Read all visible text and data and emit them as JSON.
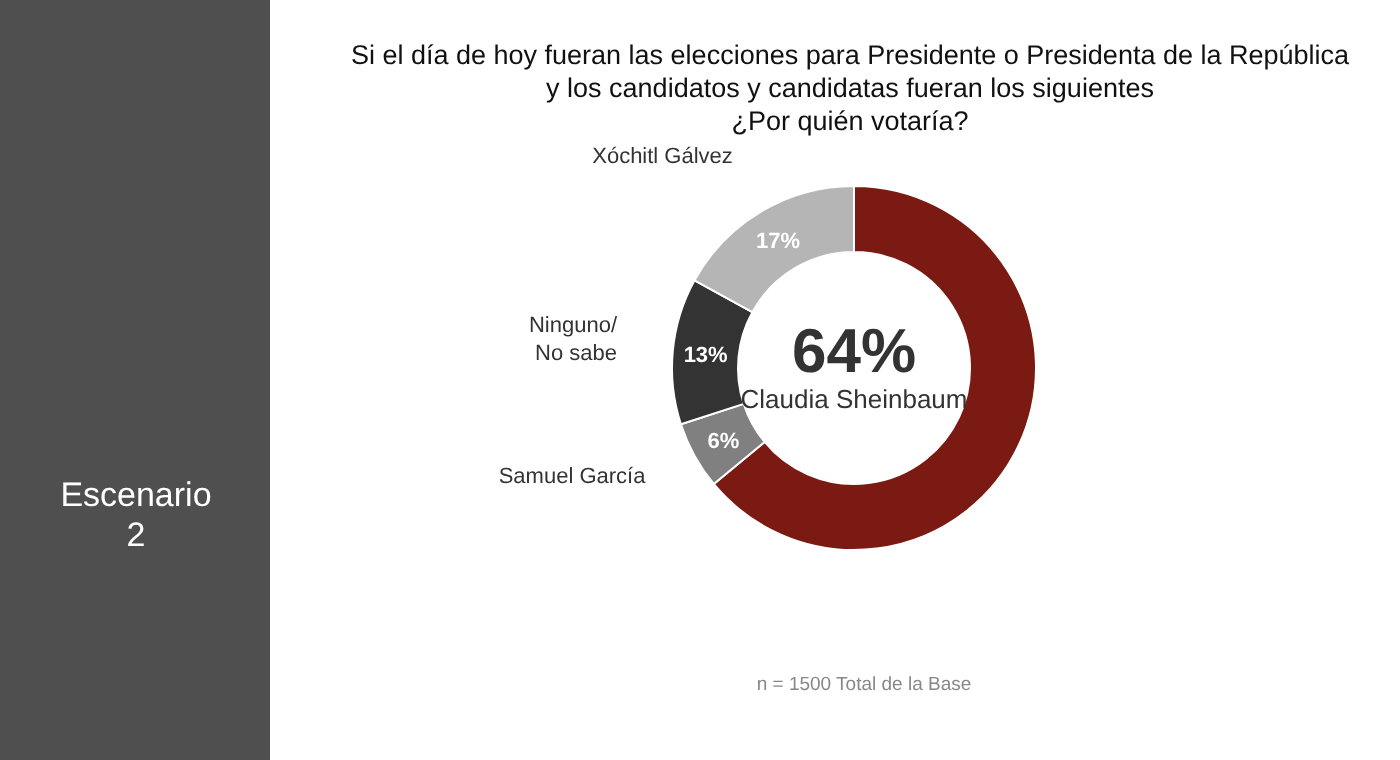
{
  "chart_data": {
    "type": "donut",
    "title": "Si el día de hoy fueran las elecciones para Presidente o Presidenta de la República y los candidatos y candidatas fueran los siguientes ¿Por quién votaría?",
    "categories": [
      "Claudia Sheinbaum",
      "Samuel García",
      "Ninguno/ No sabe",
      "Xóchitl Gálvez"
    ],
    "values": [
      64,
      6,
      13,
      17
    ],
    "colors": [
      "#7b1a13",
      "#808080",
      "#333333",
      "#b5b5b5"
    ],
    "value_labels": [
      "64%",
      "6%",
      "13%",
      "17%"
    ],
    "annotations": [
      "Escenario 2",
      "n = 1500 Total de la Base"
    ]
  }
}
